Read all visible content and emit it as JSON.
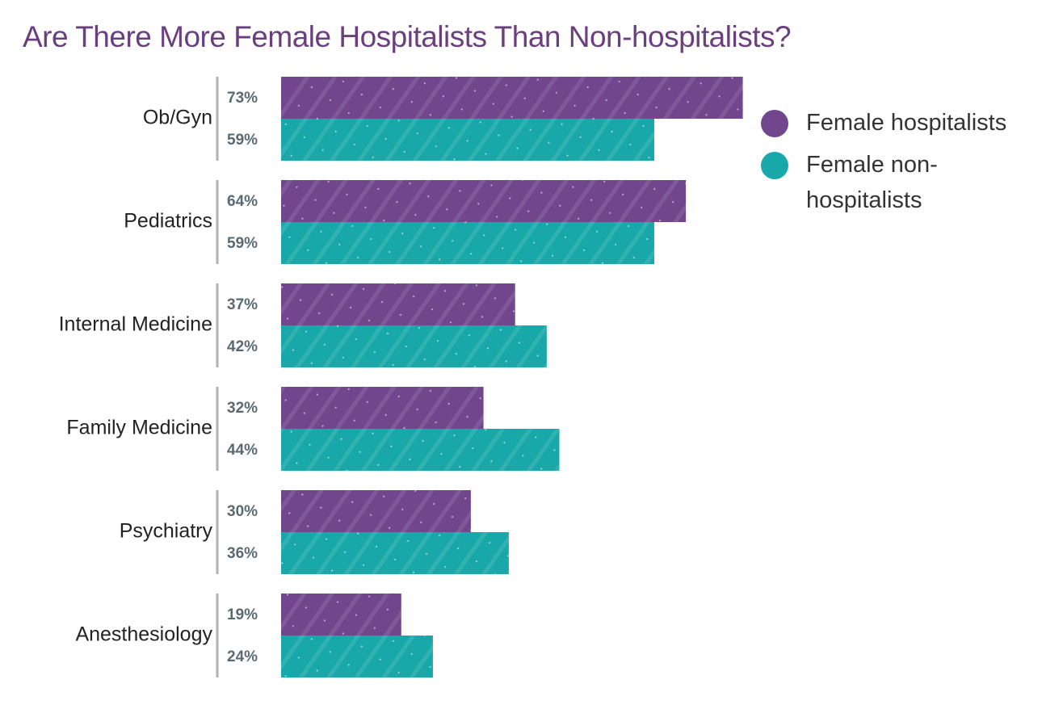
{
  "colors": {
    "title": "#6b3f7e",
    "series1": "#71468d",
    "series2": "#19a8a9",
    "axis": "#aab4b8"
  },
  "chart_data": {
    "type": "bar",
    "orientation": "horizontal",
    "title": "Are There More Female Hospitalists Than Non-hospitalists?",
    "categories": [
      "Ob/Gyn",
      "Pediatrics",
      "Internal Medicine",
      "Family Medicine",
      "Psychiatry",
      "Anesthesiology"
    ],
    "series": [
      {
        "name": "Female hospitalists",
        "values": [
          73,
          64,
          37,
          32,
          30,
          19
        ],
        "labels": [
          "73%",
          "64%",
          "37%",
          "32%",
          "30%",
          "19%"
        ]
      },
      {
        "name": "Female non-hospitalists",
        "values": [
          59,
          59,
          42,
          44,
          36,
          24
        ],
        "labels": [
          "59%",
          "59%",
          "42%",
          "44%",
          "36%",
          "24%"
        ]
      }
    ],
    "unit": "%",
    "xlim": [
      0,
      100
    ],
    "xlabel": "",
    "ylabel": "",
    "grid": false,
    "legend_position": "top-right"
  }
}
